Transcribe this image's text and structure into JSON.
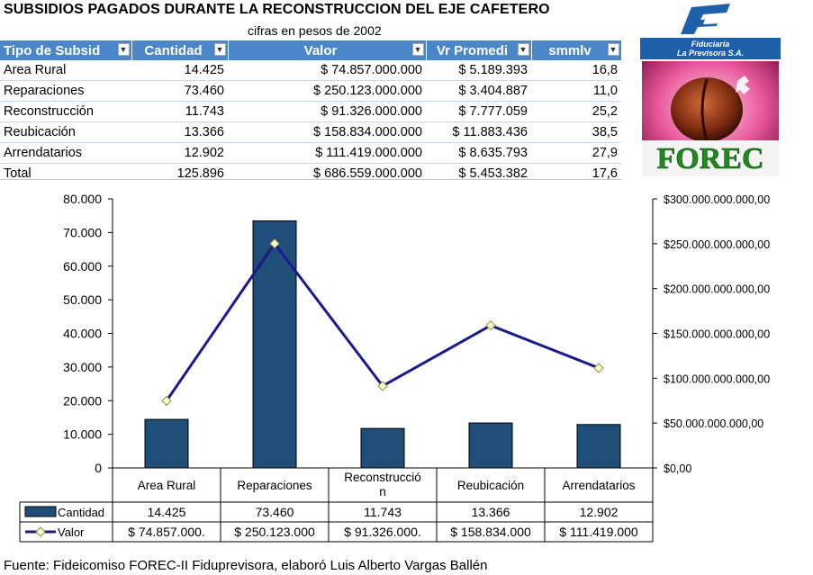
{
  "title": "SUBSIDIOS PAGADOS DURANTE LA RECONSTRUCCION DEL EJE CAFETERO",
  "subtitle": "cifras en pesos de 2002",
  "table": {
    "headers": [
      "Tipo de Subsid",
      "Cantidad",
      "Valor",
      "Vr Promedi",
      "smmlv"
    ],
    "rows": [
      [
        "Area Rural",
        "14.425",
        "$ 74.857.000.000",
        "$ 5.189.393",
        "16,8"
      ],
      [
        "Reparaciones",
        "73.460",
        "$ 250.123.000.000",
        "$ 3.404.887",
        "11,0"
      ],
      [
        "Reconstrucción",
        "11.743",
        "$ 91.326.000.000",
        "$ 7.777.059",
        "25,2"
      ],
      [
        "Reubicación",
        "13.366",
        "$ 158.834.000.000",
        "$ 11.883.436",
        "38,5"
      ],
      [
        "Arrendatarios",
        "12.902",
        "$ 111.419.000.000",
        "$ 8.635.793",
        "27,9"
      ]
    ],
    "total": [
      "Total",
      "125.896",
      "$ 686.559.000.000",
      "$ 5.453.382",
      "17,6"
    ]
  },
  "logos": {
    "fiduciaria_line1": "Fiduciaria",
    "fiduciaria_line2": "La Previsora S.A.",
    "forec": "FOREC"
  },
  "chart_data": {
    "type": "bar",
    "categories": [
      "Area Rural",
      "Reparaciones",
      "Reconstrucció\nn",
      "Reubicación",
      "Arrendatarios"
    ],
    "series": [
      {
        "name": "Cantidad",
        "type": "bar",
        "axis": "left",
        "values": [
          14425,
          73460,
          11743,
          13366,
          12902
        ],
        "table_labels": [
          "14.425",
          "73.460",
          "11.743",
          "13.366",
          "12.902"
        ]
      },
      {
        "name": "Valor",
        "type": "line",
        "axis": "right",
        "values": [
          74857000000,
          250123000000,
          91326000000,
          158834000000,
          111419000000
        ],
        "table_labels": [
          "$ 74.857.000.",
          "$ 250.123.000",
          "$ 91.326.000.",
          "$ 158.834.000",
          "$ 111.419.000"
        ]
      }
    ],
    "left_axis": {
      "ylim": [
        0,
        80000
      ],
      "ticks": [
        "0",
        "10.000",
        "20.000",
        "30.000",
        "40.000",
        "50.000",
        "60.000",
        "70.000",
        "80.000"
      ]
    },
    "right_axis": {
      "ylim": [
        0,
        300000000000
      ],
      "ticks": [
        "$0,00",
        "$50.000.000.000,00",
        "$100.000.000.000,00",
        "$150.000.000.000,00",
        "$200.000.000.000,00",
        "$250.000.000.000,00",
        "$300.000.000.000,00"
      ]
    },
    "grid": false,
    "legend": "data-table",
    "colors": {
      "bar": "#1f4e79",
      "line": "#1a1a8c",
      "marker_fill": "#ffffcc",
      "marker_stroke": "#8c8c46"
    }
  },
  "source": "Fuente: Fideicomiso FOREC-II Fiduprevisora, elaboró Luis Alberto Vargas Ballén"
}
